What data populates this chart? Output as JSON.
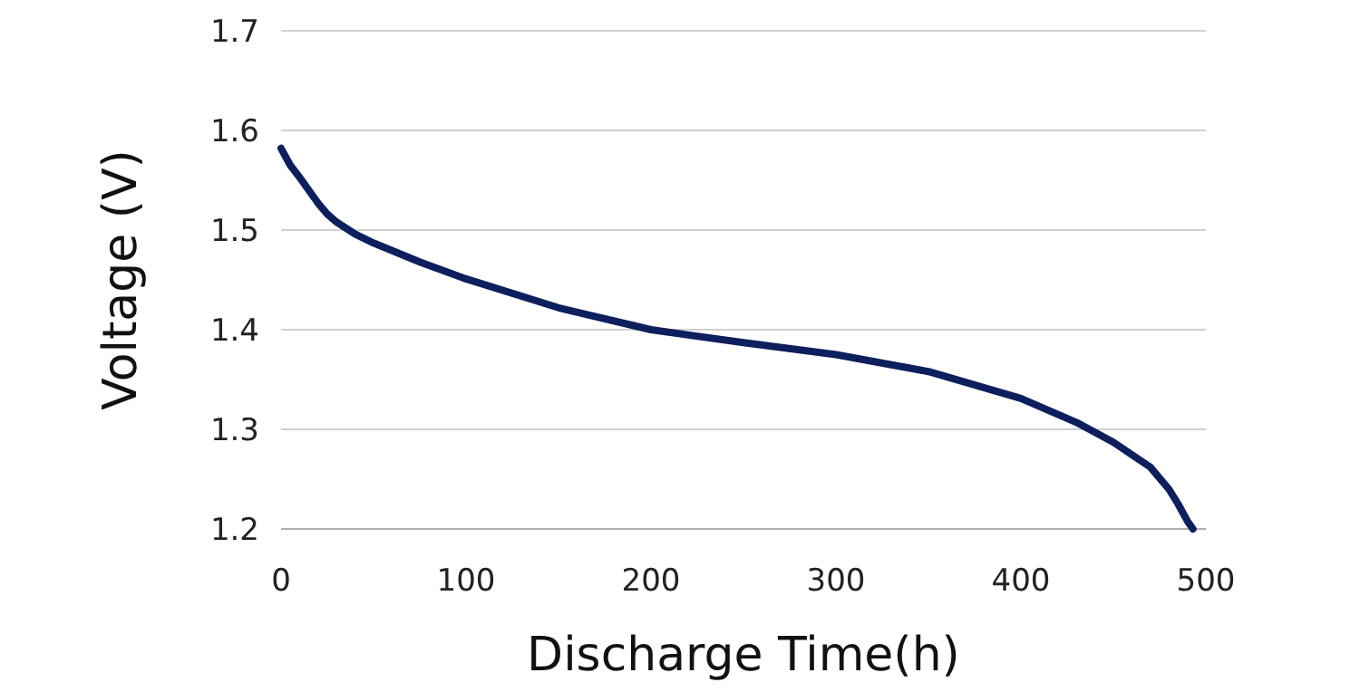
{
  "chart_data": {
    "type": "line",
    "xlabel": "Discharge Time(h)",
    "ylabel": "Voltage (V)",
    "xlim": [
      0,
      500
    ],
    "xticks": [
      0,
      100,
      200,
      300,
      400,
      500
    ],
    "ylim": [
      1.2,
      1.7
    ],
    "yticks": [
      {
        "value": 1.2,
        "label": "1.2"
      },
      {
        "value": 1.3,
        "label": "1.3"
      },
      {
        "value": 1.4,
        "label": "1.4"
      },
      {
        "value": 1.5,
        "label": "1.5"
      },
      {
        "value": 1.6,
        "label": "1.6"
      },
      {
        "value": 1.7,
        "label": "1.7"
      }
    ],
    "grid": "y",
    "line_style": "solid",
    "series": [
      {
        "color": "#0d1f5c",
        "x": [
          0,
          5,
          10,
          15,
          20,
          25,
          30,
          40,
          50,
          75,
          100,
          150,
          200,
          250,
          300,
          350,
          400,
          430,
          450,
          470,
          480,
          485,
          490,
          493
        ],
        "values": [
          1.582,
          1.565,
          1.553,
          1.54,
          1.527,
          1.516,
          1.508,
          1.496,
          1.487,
          1.468,
          1.451,
          1.422,
          1.4,
          1.387,
          1.375,
          1.358,
          1.331,
          1.307,
          1.287,
          1.262,
          1.24,
          1.225,
          1.208,
          1.2
        ]
      }
    ]
  }
}
